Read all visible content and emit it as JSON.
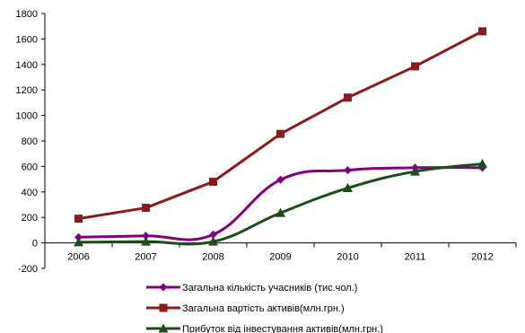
{
  "chart_data": {
    "type": "line",
    "categories": [
      "2006",
      "2007",
      "2008",
      "2009",
      "2010",
      "2011",
      "2012"
    ],
    "ylim": [
      -200,
      1800
    ],
    "yticks": [
      -200,
      0,
      200,
      400,
      600,
      800,
      1000,
      1200,
      1400,
      1600,
      1800
    ],
    "grid": false,
    "legend_position": "bottom",
    "series": [
      {
        "name": "Загальна кількість учасників (тис.чол.)",
        "values": [
          45,
          55,
          65,
          495,
          570,
          590,
          590
        ],
        "color": "#800080",
        "marker": "diamond",
        "smooth": true
      },
      {
        "name": "Загальна вартість активів(млн.грн.)",
        "values": [
          190,
          275,
          480,
          855,
          1140,
          1385,
          1660
        ],
        "color": "#8B1A1A",
        "marker": "square",
        "smooth": false
      },
      {
        "name": "Прибуток від інвестування активів(млн.грн.)",
        "values": [
          5,
          10,
          10,
          235,
          430,
          560,
          620
        ],
        "color": "#1B4D1B",
        "marker": "triangle",
        "smooth": true
      }
    ]
  }
}
